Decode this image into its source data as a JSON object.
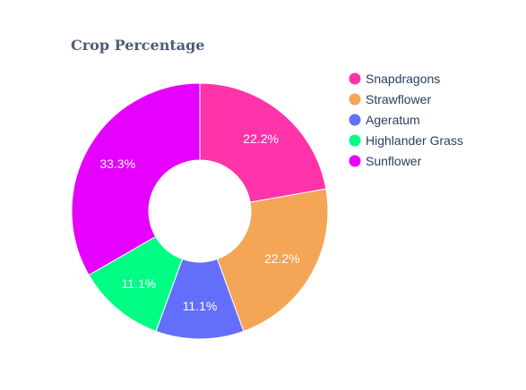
{
  "chart_data": {
    "type": "pie",
    "hole": true,
    "title": "Crop Percentage",
    "categories": [
      "Snapdragons",
      "Strawflower",
      "Ageratum",
      "Highlander Grass",
      "Sunflower"
    ],
    "values": [
      22.2,
      22.2,
      11.1,
      11.1,
      33.3
    ],
    "labels": [
      "22.2%",
      "22.2%",
      "11.1%",
      "11.1%",
      "33.3%"
    ],
    "colors": [
      "#ff33aa",
      "#f4a556",
      "#636efa",
      "#00fe85",
      "#e600fe"
    ],
    "legend_position": "right",
    "direction": "clockwise"
  }
}
